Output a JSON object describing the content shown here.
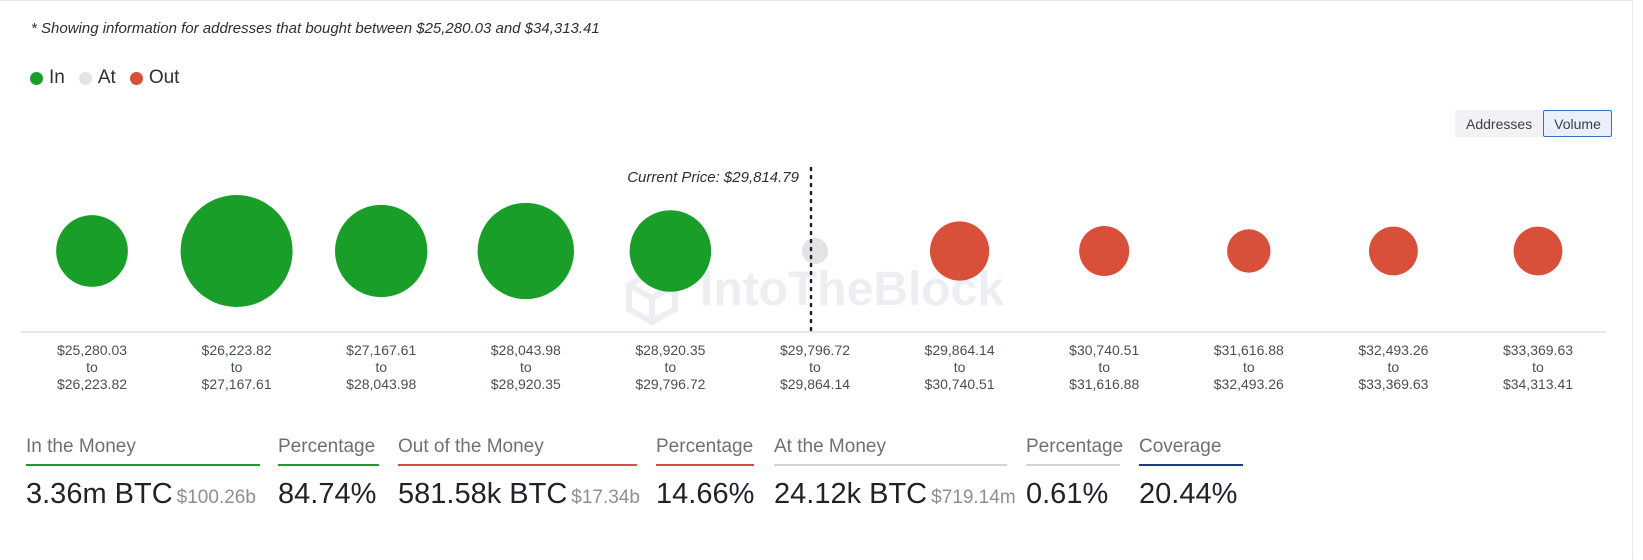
{
  "note": "* Showing information for addresses that bought between $25,280.03 and $34,313.41",
  "legend": [
    {
      "label": "In",
      "color": "#1a9e2a"
    },
    {
      "label": "At",
      "color": "#e2e3e5"
    },
    {
      "label": "Out",
      "color": "#d9503a"
    }
  ],
  "toggle": {
    "addresses": "Addresses",
    "volume": "Volume",
    "active": "Volume"
  },
  "watermark": "IntoTheBlock",
  "chart_data": {
    "type": "scatter",
    "encoding": "bubble size = volume",
    "current_price_label": "Current Price: $29,814.79",
    "current_price_after_bucket": 5,
    "buckets": [
      {
        "from": "$25,280.03",
        "to": "$26,223.82",
        "status": "In",
        "volume_rel": 0.41
      },
      {
        "from": "$26,223.82",
        "to": "$27,167.61",
        "status": "In",
        "volume_rel": 1.0
      },
      {
        "from": "$27,167.61",
        "to": "$28,043.98",
        "status": "In",
        "volume_rel": 0.68
      },
      {
        "from": "$28,043.98",
        "to": "$28,920.35",
        "status": "In",
        "volume_rel": 0.74
      },
      {
        "from": "$28,920.35",
        "to": "$29,796.72",
        "status": "In",
        "volume_rel": 0.53
      },
      {
        "from": "$29,796.72",
        "to": "$29,864.14",
        "status": "At",
        "volume_rel": 0.05
      },
      {
        "from": "$29,864.14",
        "to": "$30,740.51",
        "status": "Out",
        "volume_rel": 0.28
      },
      {
        "from": "$30,740.51",
        "to": "$31,616.88",
        "status": "Out",
        "volume_rel": 0.2
      },
      {
        "from": "$31,616.88",
        "to": "$32,493.26",
        "status": "Out",
        "volume_rel": 0.15
      },
      {
        "from": "$32,493.26",
        "to": "$33,369.63",
        "status": "Out",
        "volume_rel": 0.19
      },
      {
        "from": "$33,369.63",
        "to": "$34,313.41",
        "status": "Out",
        "volume_rel": 0.19
      }
    ],
    "to_word": "to"
  },
  "stats": [
    {
      "label": "In the Money",
      "value": "3.36m BTC",
      "sub": "$100.26b",
      "color": "#1a9e2a"
    },
    {
      "label": "Percentage",
      "value": "84.74%",
      "sub": "",
      "color": "#1a9e2a"
    },
    {
      "label": "Out of the Money",
      "value": "581.58k BTC",
      "sub": "$17.34b",
      "color": "#d9503a"
    },
    {
      "label": "Percentage",
      "value": "14.66%",
      "sub": "",
      "color": "#d9503a"
    },
    {
      "label": "At the Money",
      "value": "24.12k BTC",
      "sub": "$719.14m",
      "color": "#d3d5d9"
    },
    {
      "label": "Percentage",
      "value": "0.61%",
      "sub": "",
      "color": "#d3d5d9"
    },
    {
      "label": "Coverage",
      "value": "20.44%",
      "sub": "",
      "color": "#1c3a8f"
    }
  ]
}
